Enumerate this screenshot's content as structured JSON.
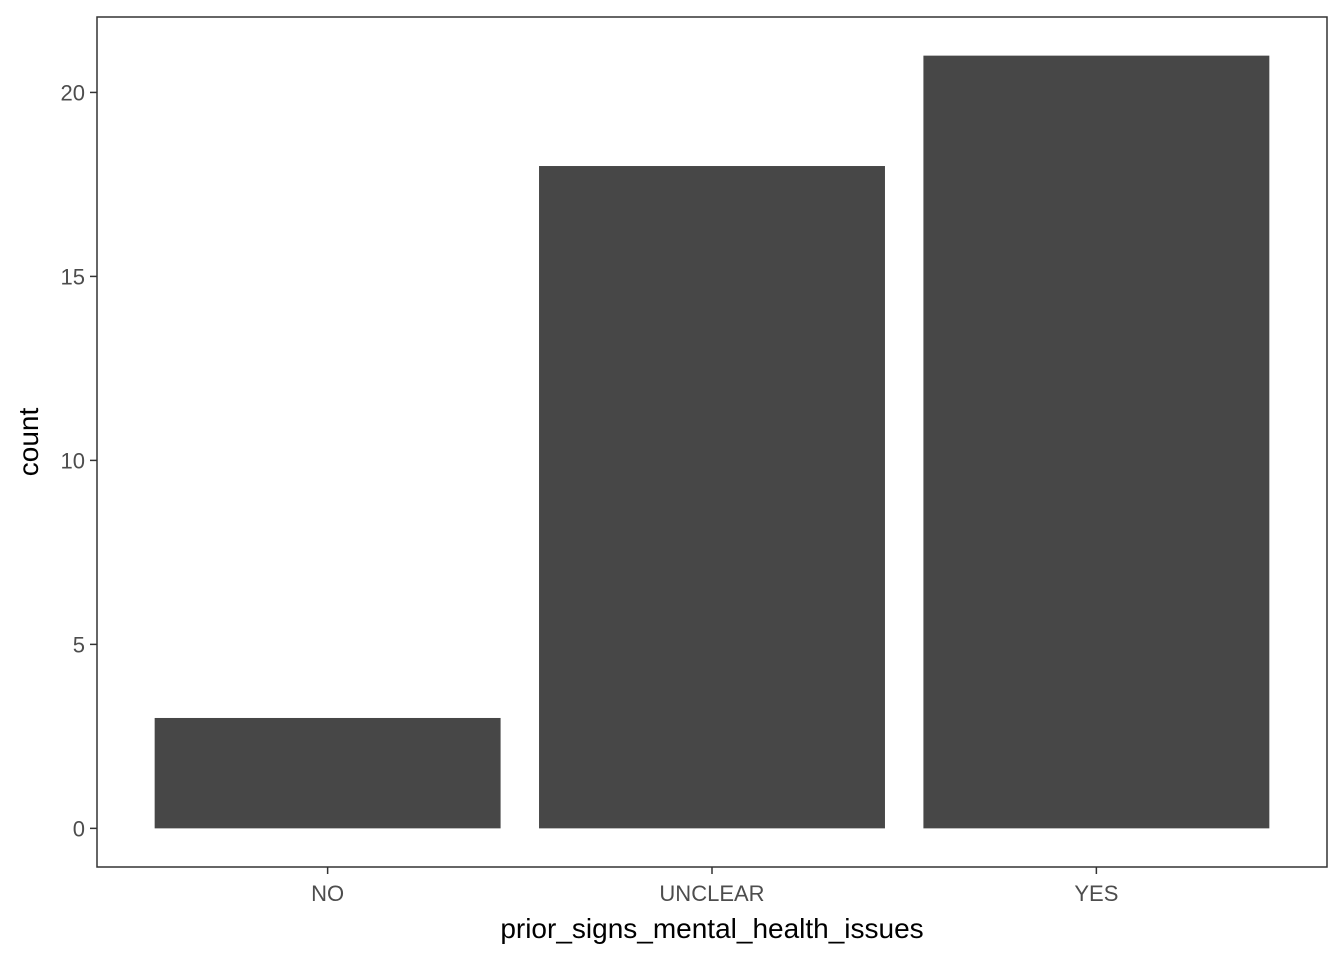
{
  "chart_data": {
    "type": "bar",
    "categories": [
      "NO",
      "UNCLEAR",
      "YES"
    ],
    "values": [
      3,
      18,
      21
    ],
    "xlabel": "prior_signs_mental_health_issues",
    "ylabel": "count",
    "ylim": [
      -1.05,
      22.05
    ],
    "yticks": [
      0,
      5,
      10,
      15,
      20
    ],
    "grid": false,
    "legend": "none",
    "bar_color": "#474747",
    "panel_border_color": "#333333",
    "tick_color": "#333333"
  }
}
